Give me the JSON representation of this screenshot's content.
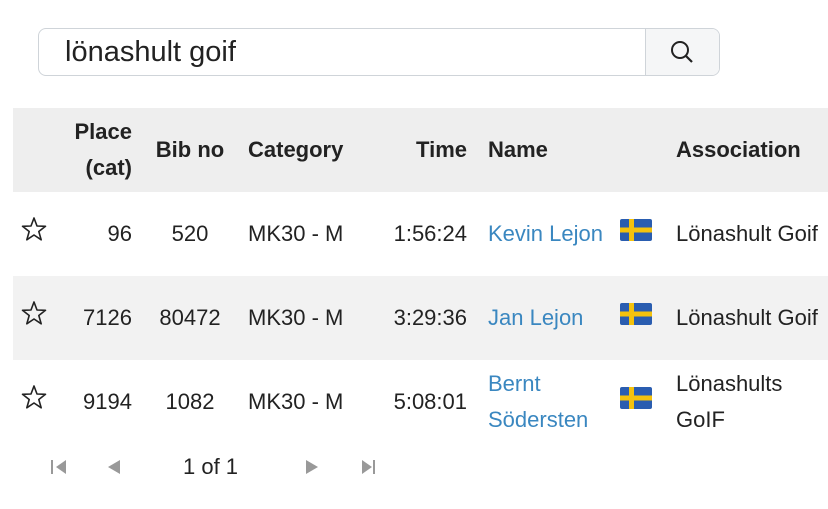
{
  "search": {
    "query": "lönashult goif"
  },
  "table": {
    "headers": [
      "Place (cat)",
      "Bib no",
      "Category",
      "Time",
      "Name",
      "Association"
    ],
    "rows": [
      {
        "place": 96,
        "bib": 520,
        "category": "MK30 - M",
        "time": "1:56:24",
        "name": "Kevin Lejon",
        "association": "Lönashult Goif"
      },
      {
        "place": 7126,
        "bib": 80472,
        "category": "MK30 - M",
        "time": "3:29:36",
        "name": "Jan Lejon",
        "association": "Lönashult Goif"
      },
      {
        "place": 9194,
        "bib": 1082,
        "category": "MK30 - M",
        "time": "5:08:01",
        "name": "Bernt Södersten",
        "association": "Lönashults GoIF"
      }
    ]
  },
  "pagination": {
    "label": "1 of 1"
  }
}
